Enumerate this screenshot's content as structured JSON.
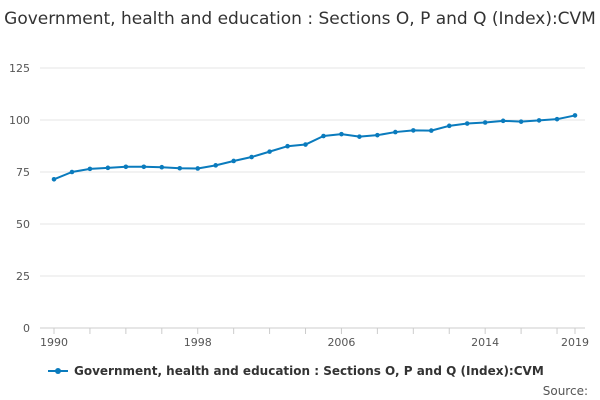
{
  "chart_data": {
    "type": "line",
    "title": "Government, health and education : Sections O, P and Q (Index):CVM",
    "xlabel": "",
    "ylabel": "",
    "xlim": [
      1990,
      2019
    ],
    "ylim": [
      0,
      125
    ],
    "x_tick_labels": [
      "1990",
      "1998",
      "2006",
      "2014",
      "2019"
    ],
    "y_tick_labels": [
      "0",
      "25",
      "50",
      "75",
      "100",
      "125"
    ],
    "grid": true,
    "legend_position": "bottom",
    "x": [
      1990,
      1991,
      1992,
      1993,
      1994,
      1995,
      1996,
      1997,
      1998,
      1999,
      2000,
      2001,
      2002,
      2003,
      2004,
      2005,
      2006,
      2007,
      2008,
      2009,
      2010,
      2011,
      2012,
      2013,
      2014,
      2015,
      2016,
      2017,
      2018,
      2019
    ],
    "series": [
      {
        "name": "Government, health and education : Sections O, P and Q (Index):CVM",
        "color": "#0a7bbd",
        "values": [
          71.5,
          75,
          76.5,
          77,
          77.5,
          77.5,
          77.3,
          76.8,
          76.7,
          78.2,
          80.3,
          82.2,
          84.8,
          87.4,
          88.2,
          92.3,
          93.2,
          92,
          92.7,
          94.2,
          95,
          94.9,
          97.2,
          98.3,
          98.8,
          99.6,
          99.2,
          99.8,
          100.4,
          102.2
        ]
      }
    ]
  },
  "source_label": "Source:"
}
